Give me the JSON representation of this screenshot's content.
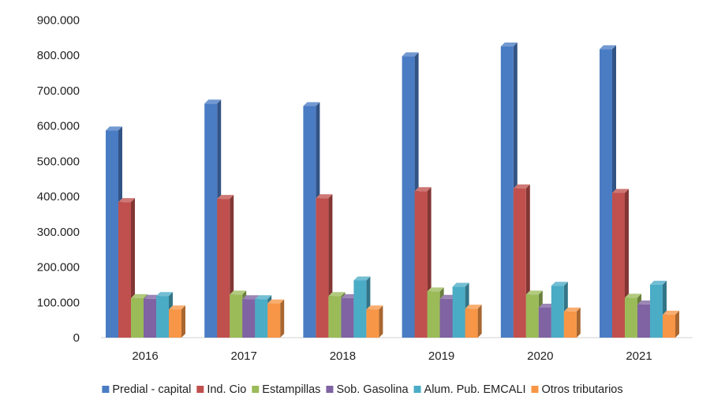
{
  "chart_data": {
    "type": "bar",
    "style": "3d-clustered-column",
    "categories": [
      "2016",
      "2017",
      "2018",
      "2019",
      "2020",
      "2021"
    ],
    "ylim": [
      0,
      900000
    ],
    "yticks": [
      0,
      100000,
      200000,
      300000,
      400000,
      500000,
      600000,
      700000,
      800000,
      900000
    ],
    "ytick_labels": [
      "0",
      "100.000",
      "200.000",
      "300.000",
      "400.000",
      "500.000",
      "600.000",
      "700.000",
      "800.000",
      "900.000"
    ],
    "grid": false,
    "legend_position": "bottom",
    "series": [
      {
        "name": "Predial - capital",
        "color": "#4A7CC4",
        "values": [
          587000,
          663000,
          656000,
          797000,
          825000,
          817000
        ]
      },
      {
        "name": "Ind.  Cio",
        "color": "#C0504D",
        "values": [
          384000,
          393000,
          395000,
          415000,
          423000,
          410000
        ]
      },
      {
        "name": "Estampillas",
        "color": "#9BBB59",
        "values": [
          112000,
          122000,
          118000,
          131000,
          122000,
          113000
        ]
      },
      {
        "name": "Sob. Gasolina",
        "color": "#7F63A2",
        "values": [
          110000,
          109000,
          112000,
          110000,
          85000,
          94000
        ]
      },
      {
        "name": "Alum. Pub. EMCALI",
        "color": "#4BACC6",
        "values": [
          118000,
          109000,
          162000,
          144000,
          147000,
          150000
        ]
      },
      {
        "name": "Otros tributarios",
        "color": "#F79646",
        "values": [
          80000,
          97000,
          80000,
          82000,
          74000,
          65000
        ]
      }
    ]
  }
}
